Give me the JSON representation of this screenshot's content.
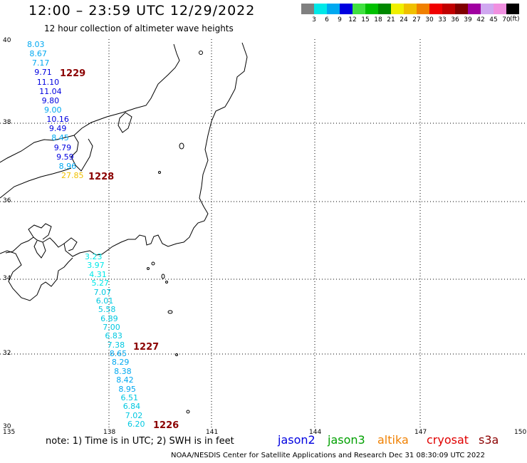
{
  "header": {
    "title": "12:00 – 23:59 UTC 12/29/2022",
    "subtitle": "12 hour collection of altimeter wave heights"
  },
  "legend": {
    "unit": "(ft)",
    "items": [
      {
        "label": "3",
        "color": "#808080"
      },
      {
        "label": "6",
        "color": "#00e8e8"
      },
      {
        "label": "9",
        "color": "#00a8f0"
      },
      {
        "label": "12",
        "color": "#0000e0"
      },
      {
        "label": "15",
        "color": "#40e040"
      },
      {
        "label": "18",
        "color": "#00c000"
      },
      {
        "label": "21",
        "color": "#008800"
      },
      {
        "label": "24",
        "color": "#f0f000"
      },
      {
        "label": "27",
        "color": "#f0c000"
      },
      {
        "label": "30",
        "color": "#f08000"
      },
      {
        "label": "33",
        "color": "#f00000"
      },
      {
        "label": "36",
        "color": "#c00000"
      },
      {
        "label": "39",
        "color": "#800000"
      },
      {
        "label": "42",
        "color": "#a000a0"
      },
      {
        "label": "45",
        "color": "#d0a8f0"
      },
      {
        "label": "70",
        "color": "#f090e0"
      },
      {
        "label": "",
        "color": "#000000"
      }
    ]
  },
  "axes": {
    "lat_labels": [
      "40",
      "38",
      "36",
      "34",
      "32",
      "30"
    ],
    "lon_labels": [
      "135",
      "138",
      "141",
      "144",
      "147",
      "150"
    ]
  },
  "passes": [
    {
      "label": "1229",
      "values": [
        {
          "v": "8.03",
          "c": "#00a8f0"
        },
        {
          "v": "8.67",
          "c": "#00a8f0"
        },
        {
          "v": "7.17",
          "c": "#00a8f0"
        },
        {
          "v": "9.71",
          "c": "#0000e0"
        },
        {
          "v": "11.10",
          "c": "#0000e0"
        },
        {
          "v": "11.04",
          "c": "#0000e0"
        },
        {
          "v": "9.80",
          "c": "#0000e0"
        },
        {
          "v": "9.00",
          "c": "#00a8f0"
        },
        {
          "v": "10.16",
          "c": "#0000e0"
        },
        {
          "v": "9.49",
          "c": "#0000e0"
        },
        {
          "v": "8.45",
          "c": "#00a8f0"
        },
        {
          "v": "9.79",
          "c": "#0000e0"
        },
        {
          "v": "9.59",
          "c": "#0000e0"
        },
        {
          "v": "8.96",
          "c": "#00a8f0"
        },
        {
          "v": "27.85",
          "c": "#f0c000"
        }
      ]
    },
    {
      "label": "1228",
      "values": []
    },
    {
      "label": "1227",
      "values": [
        {
          "v": "3.23",
          "c": "#00e8e8"
        },
        {
          "v": "3.97",
          "c": "#00e8e8"
        },
        {
          "v": "4.31",
          "c": "#00e8e8"
        },
        {
          "v": "5.27",
          "c": "#00e8e8"
        },
        {
          "v": "7.07",
          "c": "#00c8e0"
        },
        {
          "v": "6.01",
          "c": "#00c8e0"
        },
        {
          "v": "5.58",
          "c": "#00c8e0"
        },
        {
          "v": "6.89",
          "c": "#00c8e0"
        },
        {
          "v": "7.00",
          "c": "#00c8e0"
        },
        {
          "v": "6.83",
          "c": "#00c8e0"
        },
        {
          "v": "7.38",
          "c": "#00c8e0"
        },
        {
          "v": "8.65",
          "c": "#00a8f0"
        },
        {
          "v": "8.29",
          "c": "#00a8f0"
        },
        {
          "v": "8.38",
          "c": "#00a8f0"
        },
        {
          "v": "8.42",
          "c": "#00a8f0"
        },
        {
          "v": "8.95",
          "c": "#00a8f0"
        },
        {
          "v": "6.51",
          "c": "#00c8e0"
        },
        {
          "v": "6.84",
          "c": "#00c8e0"
        },
        {
          "v": "7.02",
          "c": "#00c8e0"
        },
        {
          "v": "6.20",
          "c": "#00c8e0"
        }
      ]
    },
    {
      "label": "1226",
      "values": []
    }
  ],
  "note": "note:  1) Time is in UTC;  2) SWH is in feet",
  "satellites": [
    {
      "name": "jason2",
      "color": "#0000e0"
    },
    {
      "name": "jason3",
      "color": "#00a000"
    },
    {
      "name": "altika",
      "color": "#f08000"
    },
    {
      "name": "cryosat",
      "color": "#e00000"
    },
    {
      "name": "s3a",
      "color": "#8b0000"
    }
  ],
  "footer": "NOAA/NESDIS Center for Satellite Applications and Research     Dec 31 08:30:09 UTC 2022"
}
